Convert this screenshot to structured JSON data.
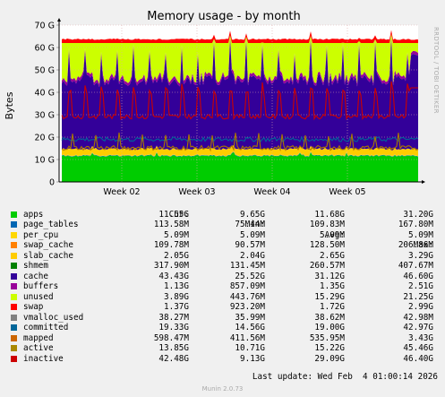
{
  "chart_data": {
    "type": "area",
    "title": "Memory usage - by month",
    "ylabel": "Bytes",
    "ylim": [
      0,
      70
    ],
    "yticks": [
      {
        "v": 0,
        "label": "0"
      },
      {
        "v": 10,
        "label": "10 G"
      },
      {
        "v": 20,
        "label": "20 G"
      },
      {
        "v": 30,
        "label": "30 G"
      },
      {
        "v": 40,
        "label": "40 G"
      },
      {
        "v": 50,
        "label": "50 G"
      },
      {
        "v": 60,
        "label": "60 G"
      },
      {
        "v": 70,
        "label": "70 G"
      }
    ],
    "xticks": [
      "Week 02",
      "Week 03",
      "Week 04",
      "Week 05"
    ],
    "series_stack": [
      {
        "name": "apps",
        "color": "#00cc00",
        "approx_level": 11.6
      },
      {
        "name": "page_tables",
        "color": "#0066b3",
        "approx_level": 0.11
      },
      {
        "name": "per_cpu",
        "color": "#ff8000",
        "approx_level": 0.005
      },
      {
        "name": "swap_cache",
        "color": "#ffcc00",
        "approx_level": 0.13
      },
      {
        "name": "slab_cache",
        "color": "#ffcc00",
        "approx_level": 2.65
      },
      {
        "name": "cache",
        "color": "#330099",
        "approx_level": 31.1
      },
      {
        "name": "buffers",
        "color": "#990099",
        "approx_level": 1.35
      },
      {
        "name": "unused",
        "color": "#ccff00",
        "approx_level": 15.3
      },
      {
        "name": "swap",
        "color": "#ff0000",
        "approx_level": 1.7
      }
    ],
    "lines": [
      {
        "name": "committed",
        "color": "#006699",
        "approx_level": 19.0
      },
      {
        "name": "active",
        "color": "#aa7700",
        "approx_level": 15.2
      },
      {
        "name": "inactive",
        "color": "#cc0000",
        "approx_level": 29.1
      }
    ]
  },
  "watermark": "RRDTOOL / TOBI OETIKER",
  "legend": {
    "headers": {
      "cur": "Cur:",
      "min": "Min:",
      "avg": "Avg:",
      "max": "Max:"
    },
    "rows": [
      {
        "name": "apps",
        "color": "#00cc00",
        "cur": "11.55G",
        "min": "9.65G",
        "avg": "11.68G",
        "max": "31.20G"
      },
      {
        "name": "page_tables",
        "color": "#0066b3",
        "cur": "113.58M",
        "min": "75.44M",
        "avg": "109.83M",
        "max": "167.80M"
      },
      {
        "name": "per_cpu",
        "color": "#ffd700",
        "cur": "5.09M",
        "min": "5.09M",
        "avg": "5.09M",
        "max": "5.09M"
      },
      {
        "name": "swap_cache",
        "color": "#ff8000",
        "cur": "109.78M",
        "min": "90.57M",
        "avg": "128.50M",
        "max": "206.86M"
      },
      {
        "name": "slab_cache",
        "color": "#ffcc00",
        "cur": "2.05G",
        "min": "2.04G",
        "avg": "2.65G",
        "max": "3.29G"
      },
      {
        "name": "shmem",
        "color": "#008000",
        "cur": "317.90M",
        "min": "131.45M",
        "avg": "260.57M",
        "max": "407.67M"
      },
      {
        "name": "cache",
        "color": "#330099",
        "cur": "43.43G",
        "min": "25.52G",
        "avg": "31.12G",
        "max": "46.60G"
      },
      {
        "name": "buffers",
        "color": "#990099",
        "cur": "1.13G",
        "min": "857.09M",
        "avg": "1.35G",
        "max": "2.51G"
      },
      {
        "name": "unused",
        "color": "#ccff00",
        "cur": "3.89G",
        "min": "443.76M",
        "avg": "15.29G",
        "max": "21.25G"
      },
      {
        "name": "swap",
        "color": "#ff0000",
        "cur": "1.37G",
        "min": "923.20M",
        "avg": "1.72G",
        "max": "2.99G"
      },
      {
        "name": "vmalloc_used",
        "color": "#808080",
        "cur": "38.27M",
        "min": "35.99M",
        "avg": "38.62M",
        "max": "42.98M"
      },
      {
        "name": "committed",
        "color": "#006699",
        "cur": "19.33G",
        "min": "14.56G",
        "avg": "19.00G",
        "max": "42.97G"
      },
      {
        "name": "mapped",
        "color": "#cc6600",
        "cur": "598.47M",
        "min": "411.56M",
        "avg": "535.95M",
        "max": "3.43G"
      },
      {
        "name": "active",
        "color": "#aa8800",
        "cur": "13.85G",
        "min": "10.71G",
        "avg": "15.22G",
        "max": "45.46G"
      },
      {
        "name": "inactive",
        "color": "#cc0000",
        "cur": "42.48G",
        "min": "9.13G",
        "avg": "29.09G",
        "max": "46.40G"
      }
    ]
  },
  "footer": {
    "last_update": "Last update: Wed Feb  4 01:00:14 2026",
    "version": "Munin 2.0.73"
  }
}
